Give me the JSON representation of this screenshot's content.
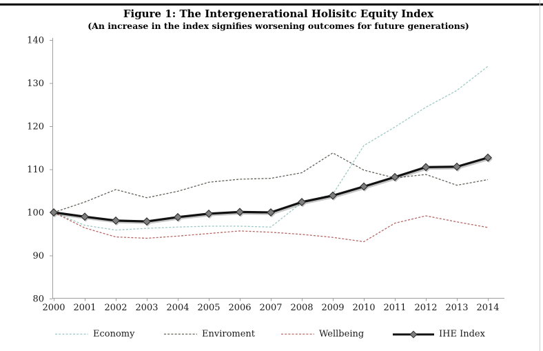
{
  "figure": {
    "title": "Figure 1: The Intergenerational Holisitc Equity Index",
    "subtitle": "(An increase in the index signifies worsening outcomes for future generations)"
  },
  "chart_data": {
    "type": "line",
    "title": "Figure 1: The Intergenerational Holisitc Equity Index",
    "subtitle": "(An increase in the index signifies worsening outcomes for future generations)",
    "xlabel": "",
    "ylabel": "",
    "x": [
      2000,
      2001,
      2002,
      2003,
      2004,
      2005,
      2006,
      2007,
      2008,
      2009,
      2010,
      2011,
      2012,
      2013,
      2014
    ],
    "ylim": [
      80,
      140
    ],
    "yticks": [
      80,
      90,
      100,
      110,
      120,
      130,
      140
    ],
    "grid": false,
    "legend_position": "bottom",
    "axis_color": "#9e9e9e",
    "tick_label_color": "#1a1a1a",
    "series": [
      {
        "name": "Economy",
        "color": "#9cc8c3",
        "style": "dashed",
        "values": [
          100,
          97.0,
          95.9,
          96.3,
          96.6,
          96.8,
          96.8,
          96.6,
          102.3,
          104.2,
          115.5,
          119.8,
          124.4,
          128.3,
          133.9
        ]
      },
      {
        "name": "Enviroment",
        "color": "#5f5f58",
        "style": "dashed",
        "values": [
          100,
          102.4,
          105.3,
          103.4,
          104.9,
          107.0,
          107.7,
          107.9,
          109.2,
          113.8,
          109.8,
          108.0,
          108.8,
          106.3,
          107.6
        ]
      },
      {
        "name": "Wellbeing",
        "color": "#b66562",
        "style": "dashed",
        "values": [
          100,
          96.4,
          94.3,
          94.0,
          94.5,
          95.1,
          95.7,
          95.4,
          94.9,
          94.2,
          93.2,
          97.5,
          99.2,
          97.8,
          96.5
        ]
      },
      {
        "name": "IHE Index",
        "color": "#111111",
        "style": "solid-diamond",
        "marker_fill": "#7f7f7f",
        "marker_stroke": "#2e2e2e",
        "values": [
          100,
          99.0,
          98.1,
          97.9,
          98.9,
          99.7,
          100.1,
          100.0,
          102.4,
          103.9,
          106.0,
          108.2,
          110.5,
          110.6,
          112.7
        ]
      }
    ]
  }
}
